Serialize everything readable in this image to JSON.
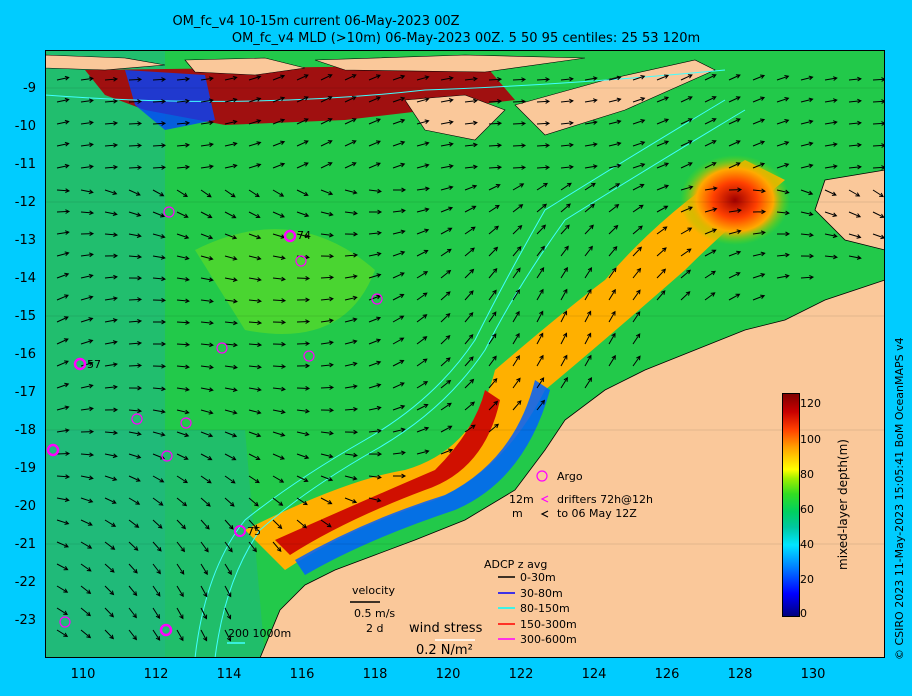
{
  "title_line1": "OM_fc_v4  10-15m current 06-May-2023 00Z",
  "title_line2": "OM_fc_v4  MLD (>10m) 06-May-2023 00Z. 5 50 95 centiles: 25   53  120m",
  "y_ticks": [
    "-9",
    "-10",
    "-11",
    "-12",
    "-13",
    "-14",
    "-15",
    "-16",
    "-17",
    "-18",
    "-19",
    "-20",
    "-21",
    "-22",
    "-23"
  ],
  "x_ticks": [
    "110",
    "112",
    "114",
    "116",
    "118",
    "120",
    "122",
    "124",
    "126",
    "128",
    "130"
  ],
  "argo_labels": {
    "a74": "74",
    "a57": "57",
    "a75": "75"
  },
  "legend": {
    "argo": "Argo",
    "drifters_12m": "12m",
    "drifters_m": "m",
    "drifters_1": "drifters 72h@12h",
    "drifters_2": "to 06 May 12Z",
    "adcp_title": "ADCP z avg",
    "adcp": [
      "0-30m",
      "30-80m",
      "80-150m",
      "150-300m",
      "300-600m"
    ],
    "adcp_colors": [
      "#000000",
      "#0000ff",
      "#00ffff",
      "#ff0000",
      "#ff00ff"
    ],
    "velocity": "velocity",
    "vel_value": "0.5 m/s",
    "vel_days": "2 d",
    "wind_stress": "wind stress",
    "wind_value": "0.2 N/m²",
    "depth_contours": "200  1000m"
  },
  "colorbar": {
    "ticks": [
      "120",
      "100",
      "80",
      "60",
      "40",
      "20",
      "0"
    ],
    "label": "mixed-layer depth(m)"
  },
  "credit": "© CSIRO 2023  11-May-2023 15:05:41 BoM OceanMAPS v4"
}
